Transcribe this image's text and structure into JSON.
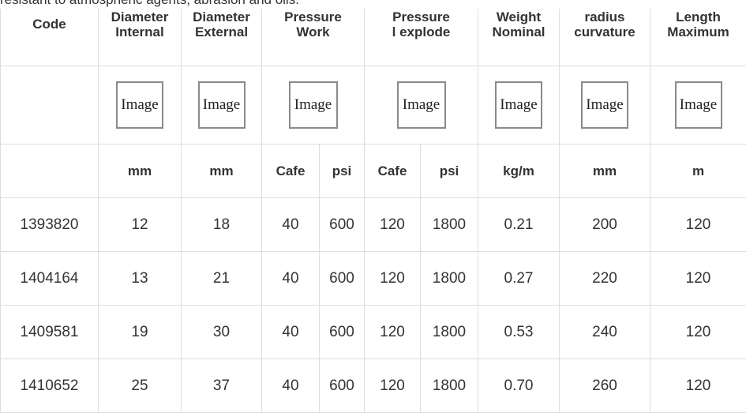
{
  "intro_text": "resistant to atmospheric agents, abrasion and oils.",
  "headers": [
    {
      "line1": "Code",
      "line2": ""
    },
    {
      "line1": "Diameter",
      "line2": "Internal"
    },
    {
      "line1": "Diameter",
      "line2": "External"
    },
    {
      "line1": "Pressure",
      "line2": "Work"
    },
    {
      "line1": "Pressure",
      "line2": "l explode"
    },
    {
      "line1": "Weight",
      "line2": "Nominal"
    },
    {
      "line1": "radius",
      "line2": "curvature"
    },
    {
      "line1": "Length",
      "line2": "Maximum"
    }
  ],
  "image_placeholder": "Image",
  "units": [
    "",
    "mm",
    "mm",
    "Cafe",
    "psi",
    "Cafe",
    "psi",
    "kg/m",
    "mm",
    "m"
  ],
  "rows": [
    [
      "1393820",
      "12",
      "18",
      "40",
      "600",
      "120",
      "1800",
      "0.21",
      "200",
      "120"
    ],
    [
      "1404164",
      "13",
      "21",
      "40",
      "600",
      "120",
      "1800",
      "0.27",
      "220",
      "120"
    ],
    [
      "1409581",
      "19",
      "30",
      "40",
      "600",
      "120",
      "1800",
      "0.53",
      "240",
      "120"
    ],
    [
      "1410652",
      "25",
      "37",
      "40",
      "600",
      "120",
      "1800",
      "0.70",
      "260",
      "120"
    ]
  ]
}
